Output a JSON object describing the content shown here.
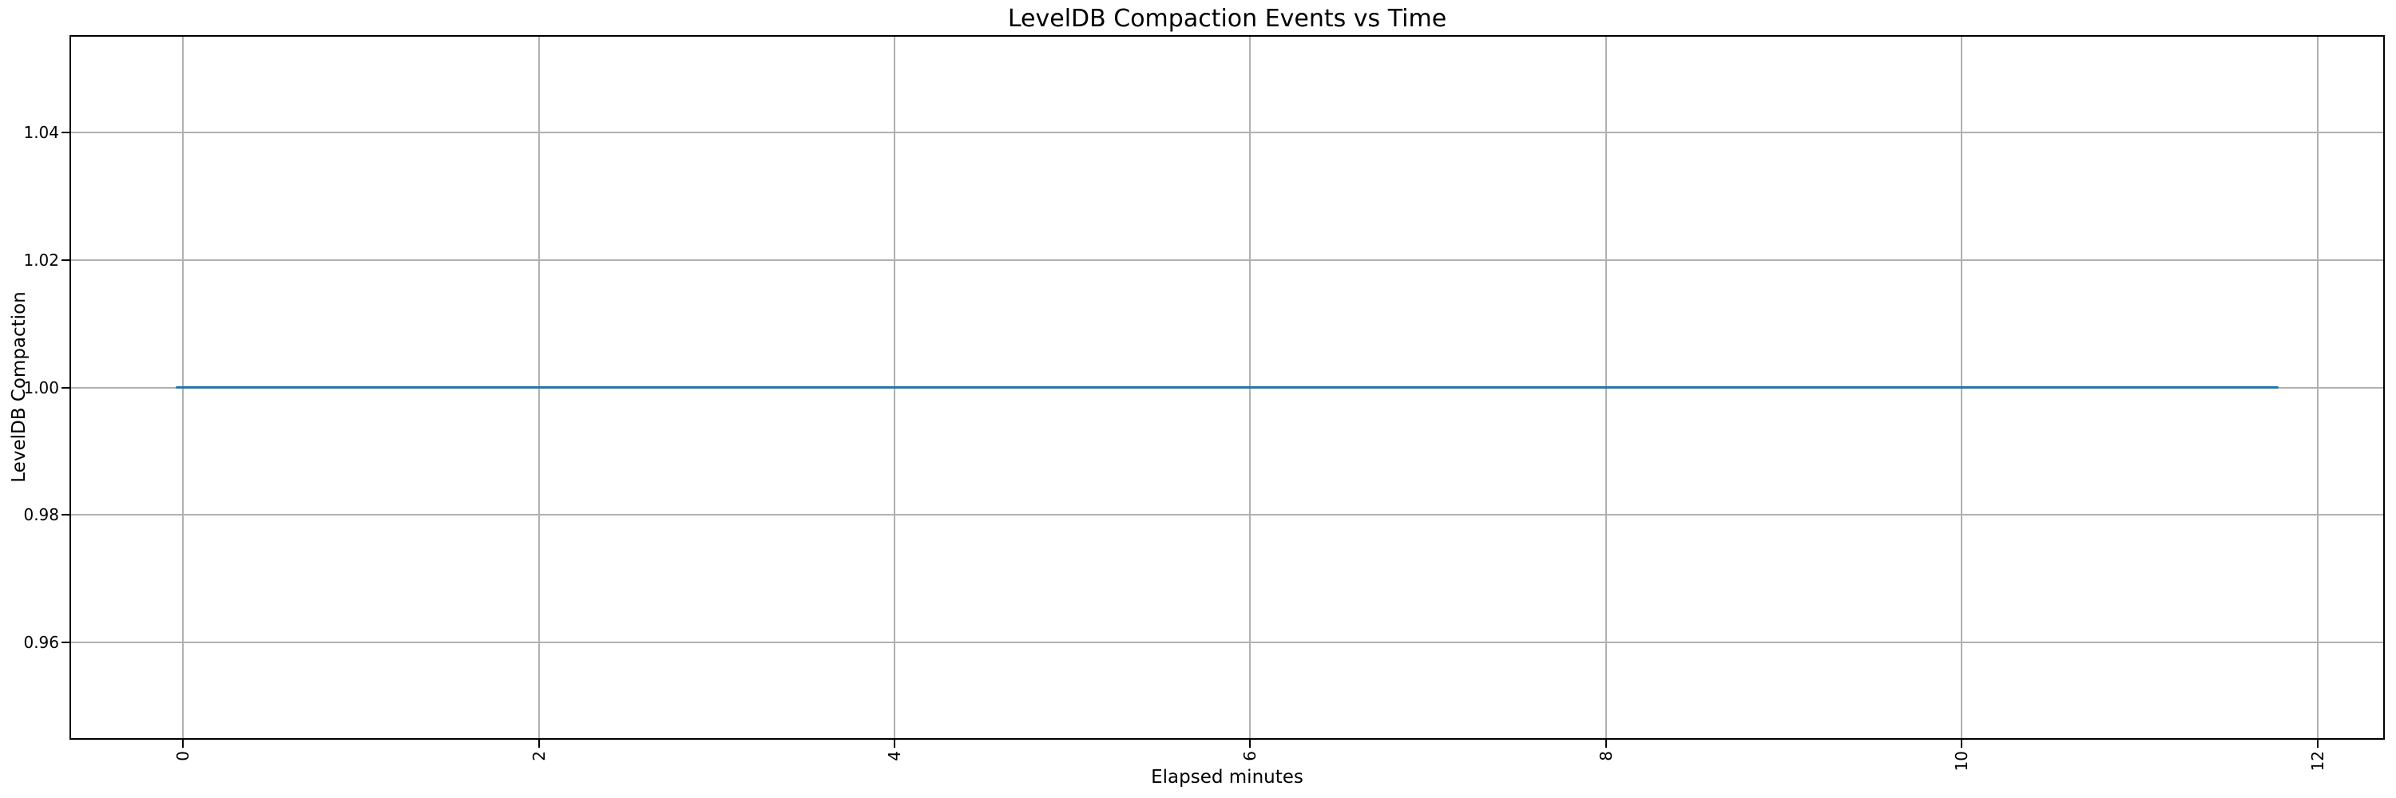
{
  "colors": {
    "line": "#1f77b4",
    "grid": "#b0b0b0",
    "spine": "#000000",
    "text": "#000000",
    "background": "#ffffff"
  },
  "chart_data": {
    "type": "line",
    "title": "LevelDB Compaction Events vs Time",
    "xlabel": "Elapsed minutes",
    "ylabel": "LevelDB Compaction",
    "xlim": [
      -0.63,
      12.37
    ],
    "ylim": [
      0.945,
      1.055
    ],
    "x_ticks": [
      0,
      2,
      4,
      6,
      8,
      10,
      12
    ],
    "x_tick_labels": [
      "0",
      "2",
      "4",
      "6",
      "8",
      "10",
      "12"
    ],
    "x_tick_rotation": 90,
    "y_ticks": [
      1.04,
      1.02,
      1.0,
      0.98,
      0.96
    ],
    "y_tick_labels": [
      "1.04",
      "1.02",
      "1.00",
      "0.98",
      "0.96"
    ],
    "grid": true,
    "legend": false,
    "series": [
      {
        "name": "LevelDB Compaction",
        "color": "#1f77b4",
        "points": [
          {
            "x": -0.04,
            "y": 1.0
          },
          {
            "x": 11.78,
            "y": 1.0
          }
        ]
      }
    ]
  }
}
